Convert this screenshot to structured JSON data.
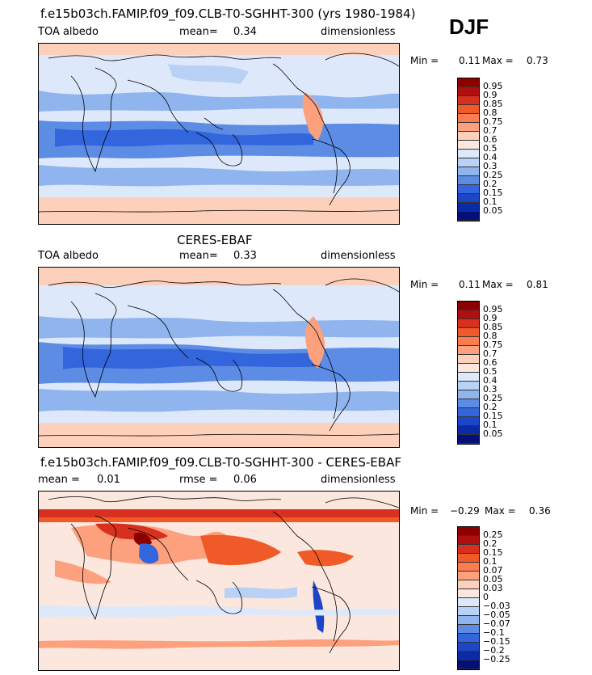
{
  "season": "DJF",
  "panels": [
    {
      "title": "f.e15b03ch.FAMIP.f09_f09.CLB-T0-SGHHT-300 (yrs 1980-1984)",
      "left": "TOA albedo",
      "mean_label": "mean=",
      "mean_value": "0.34",
      "units": "dimensionless",
      "min_label": "Min =",
      "min_value": "0.11",
      "max_label": "Max =",
      "max_value": "0.73",
      "colorbar": [
        "0.95",
        "0.9",
        "0.85",
        "0.8",
        "0.75",
        "0.7",
        "0.6",
        "0.5",
        "0.4",
        "0.3",
        "0.25",
        "0.2",
        "0.15",
        "0.1",
        "0.05"
      ],
      "colors": [
        "#8b0000",
        "#b00f0f",
        "#d7301f",
        "#f05a28",
        "#fb7d4f",
        "#fca07e",
        "#fdd0bb",
        "#fbe7dd",
        "#dde9fa",
        "#b9d1f5",
        "#8fb4ee",
        "#5d8ce4",
        "#3366dd",
        "#1d45c8",
        "#0b2aa5",
        "#050f78"
      ]
    },
    {
      "title": "CERES-EBAF",
      "left": "TOA albedo",
      "mean_label": "mean=",
      "mean_value": "0.33",
      "units": "dimensionless",
      "min_label": "Min =",
      "min_value": "0.11",
      "max_label": "Max =",
      "max_value": "0.81",
      "colorbar": [
        "0.95",
        "0.9",
        "0.85",
        "0.8",
        "0.75",
        "0.7",
        "0.6",
        "0.5",
        "0.4",
        "0.3",
        "0.25",
        "0.2",
        "0.15",
        "0.1",
        "0.05"
      ],
      "colors": [
        "#8b0000",
        "#b00f0f",
        "#d7301f",
        "#f05a28",
        "#fb7d4f",
        "#fca07e",
        "#fdd0bb",
        "#fbe7dd",
        "#dde9fa",
        "#b9d1f5",
        "#8fb4ee",
        "#5d8ce4",
        "#3366dd",
        "#1d45c8",
        "#0b2aa5",
        "#050f78"
      ]
    },
    {
      "title": "f.e15b03ch.FAMIP.f09_f09.CLB-T0-SGHHT-300 - CERES-EBAF",
      "left_label": "mean =",
      "left_value": "0.01",
      "mid_label": "rmse =",
      "mid_value": "0.06",
      "units": "dimensionless",
      "min_label": "Min =",
      "min_value": "−0.29",
      "max_label": "Max =",
      "max_value": "0.36",
      "colorbar": [
        "0.25",
        "0.2",
        "0.15",
        "0.1",
        "0.07",
        "0.05",
        "0.03",
        "0",
        "−0.03",
        "−0.05",
        "−0.07",
        "−0.1",
        "−0.15",
        "−0.2",
        "−0.25"
      ],
      "colors": [
        "#8b0000",
        "#b00f0f",
        "#d7301f",
        "#f05a28",
        "#fb7d4f",
        "#fca07e",
        "#fdd0bb",
        "#fbe7dd",
        "#dde9fa",
        "#b9d1f5",
        "#8fb4ee",
        "#5d8ce4",
        "#3366dd",
        "#1d45c8",
        "#0b2aa5",
        "#050f78"
      ]
    }
  ]
}
